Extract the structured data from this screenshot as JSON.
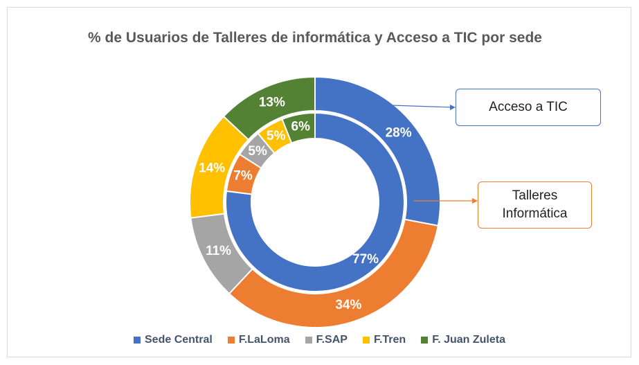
{
  "chart_data": {
    "type": "doughnut",
    "title": "% de Usuarios de Talleres de informática y Acceso a TIC por sede",
    "categories": [
      "Sede Central",
      "F.LaLoma",
      "F.SAP",
      "F.Tren",
      "F. Juan Zuleta"
    ],
    "colors": [
      "#4472c4",
      "#ed7d31",
      "#a5a5a5",
      "#ffc000",
      "#548235"
    ],
    "series": [
      {
        "name": "Acceso a TIC",
        "color": "#4472c4",
        "values": [
          28,
          34,
          11,
          14,
          13
        ],
        "value_labels": [
          "28%",
          "34%",
          "11%",
          "14%",
          "13%"
        ]
      },
      {
        "name": "Talleres Informática",
        "color": "#ed7d31",
        "values": [
          77,
          7,
          5,
          5,
          6
        ],
        "value_labels": [
          "77%",
          "7%",
          "5%",
          "5%",
          "6%"
        ]
      }
    ],
    "legend": "bottom"
  }
}
